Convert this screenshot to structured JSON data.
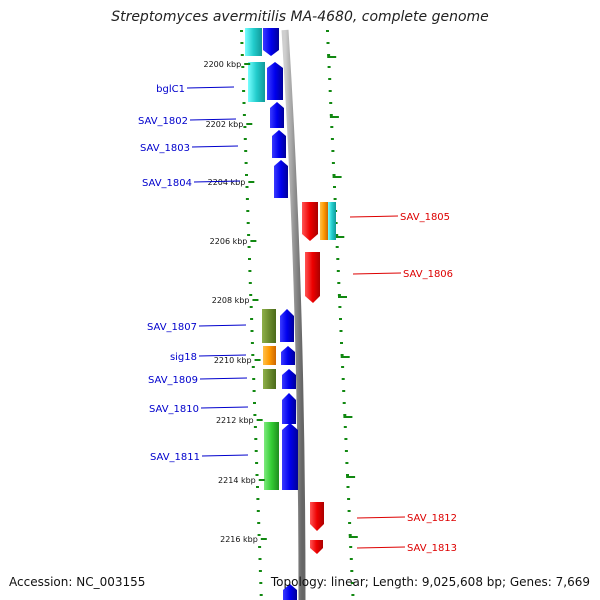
{
  "title": "Streptomyces avermitilis MA-4680, complete genome",
  "footer": {
    "accession": "Accession: NC_003155",
    "summary": "Topology: linear; Length: 9,025,608 bp; Genes: 7,669"
  },
  "colors": {
    "forward_label": "#0000cc",
    "reverse_label": "#dd0000",
    "backbone": "#9a9a9a",
    "ticks": "#118811"
  },
  "ticks": [
    "2200 kbp",
    "2202 kbp",
    "2204 kbp",
    "2206 kbp",
    "2208 kbp",
    "2210 kbp",
    "2212 kbp",
    "2214 kbp",
    "2216 kbp"
  ],
  "forward_labels": [
    "bglC1",
    "SAV_1802",
    "SAV_1803",
    "SAV_1804",
    "SAV_1807",
    "sig18",
    "SAV_1809",
    "SAV_1810",
    "SAV_1811"
  ],
  "reverse_labels": [
    "SAV_1805",
    "SAV_1806",
    "SAV_1812",
    "SAV_1813"
  ]
}
